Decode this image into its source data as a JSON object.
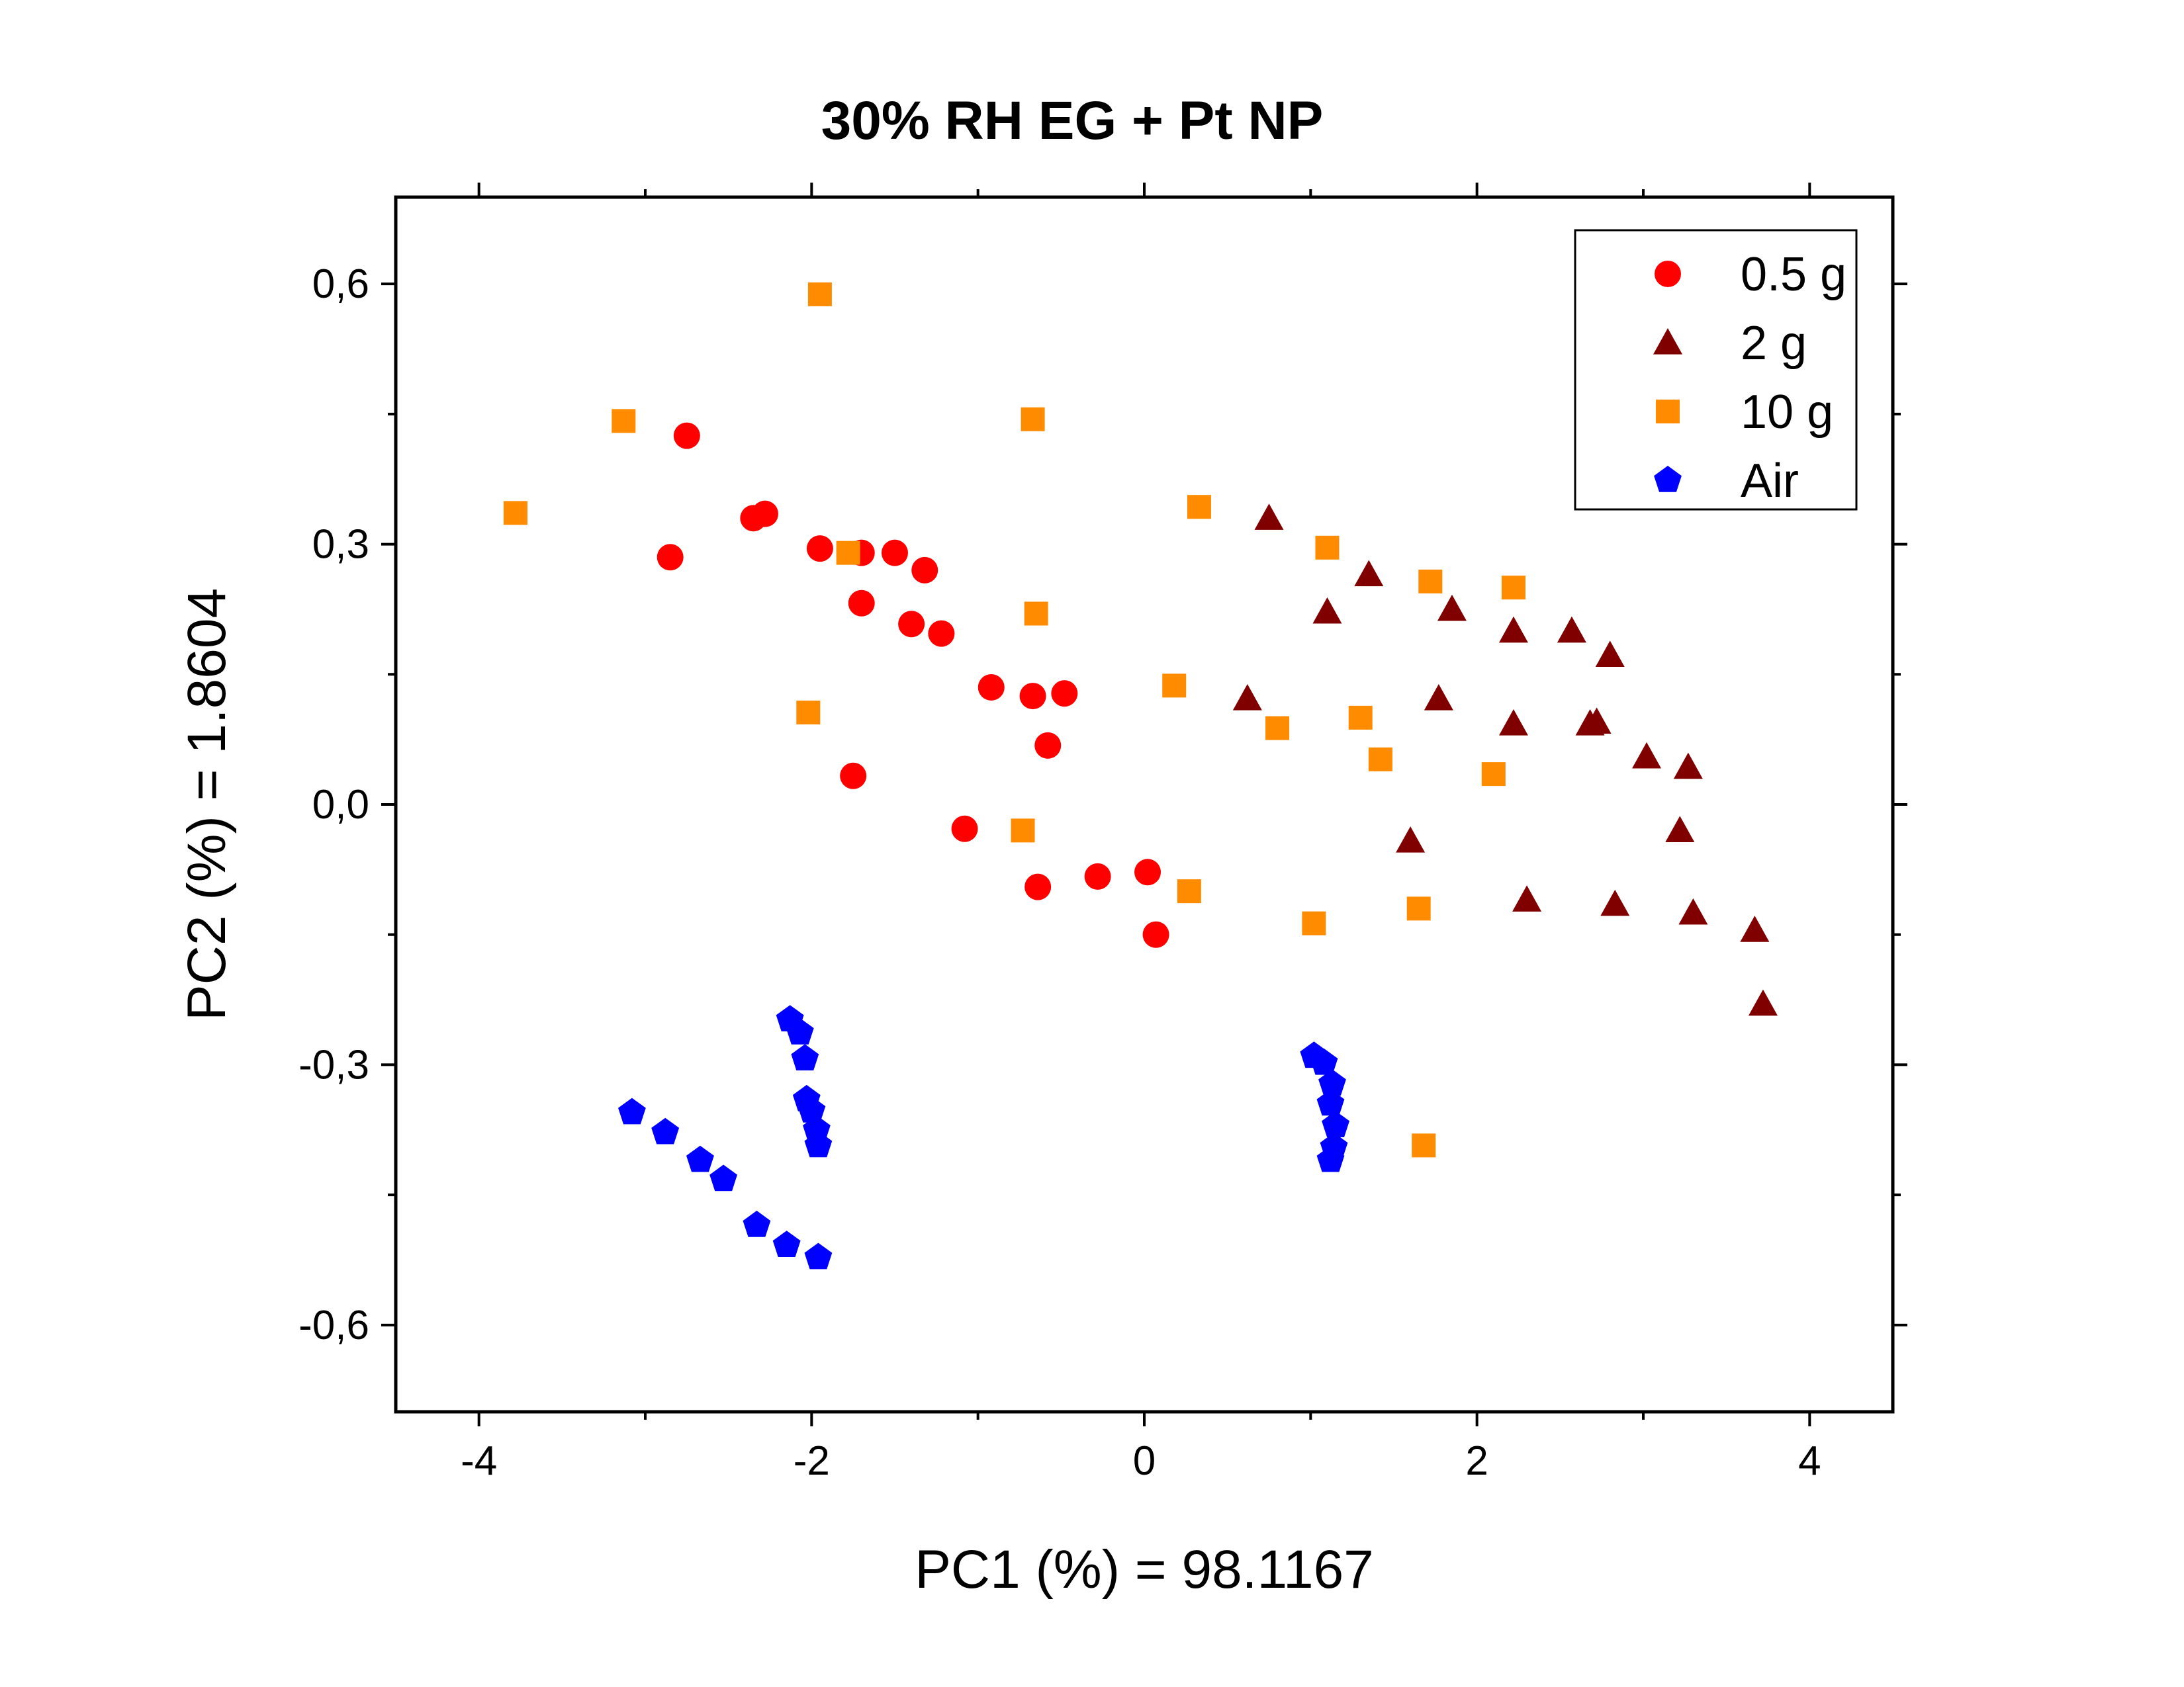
{
  "chart_data": {
    "type": "scatter",
    "title": "30% RH EG + Pt NP",
    "xlabel": "PC1 (%) = 98.1167",
    "ylabel": "PC2 (%) = 1.8604",
    "xlim": [
      -4.5,
      4.5
    ],
    "ylim": [
      -0.7,
      0.7
    ],
    "x_ticks": [
      -4,
      -2,
      0,
      2,
      4
    ],
    "x_tick_labels": [
      "-4",
      "-2",
      "0",
      "2",
      "4"
    ],
    "y_ticks": [
      -0.6,
      -0.3,
      0.0,
      0.3,
      0.6
    ],
    "y_tick_labels": [
      "-0,6",
      "-0,3",
      "0,0",
      "0,3",
      "0,6"
    ],
    "grid": false,
    "legend_position": "top-right",
    "series": [
      {
        "name": "0.5 g",
        "marker": "circle",
        "color": "#ff0000",
        "points": [
          [
            -2.75,
            0.425
          ],
          [
            -2.85,
            0.285
          ],
          [
            -2.35,
            0.33
          ],
          [
            -2.28,
            0.335
          ],
          [
            -1.95,
            0.295
          ],
          [
            -1.7,
            0.29
          ],
          [
            -1.5,
            0.29
          ],
          [
            -1.32,
            0.27
          ],
          [
            -1.7,
            0.232
          ],
          [
            -1.4,
            0.208
          ],
          [
            -1.22,
            0.197
          ],
          [
            -0.92,
            0.135
          ],
          [
            -0.67,
            0.125
          ],
          [
            -0.48,
            0.128
          ],
          [
            -0.58,
            0.068
          ],
          [
            -1.75,
            0.033
          ],
          [
            -1.08,
            -0.028
          ],
          [
            -0.64,
            -0.095
          ],
          [
            -0.28,
            -0.083
          ],
          [
            0.02,
            -0.078
          ],
          [
            0.07,
            -0.15
          ]
        ]
      },
      {
        "name": "2 g",
        "marker": "triangle",
        "color": "#800000",
        "points": [
          [
            0.75,
            0.33
          ],
          [
            1.35,
            0.265
          ],
          [
            1.1,
            0.222
          ],
          [
            1.85,
            0.225
          ],
          [
            2.22,
            0.2
          ],
          [
            2.57,
            0.2
          ],
          [
            2.8,
            0.172
          ],
          [
            0.62,
            0.122
          ],
          [
            1.77,
            0.122
          ],
          [
            2.22,
            0.093
          ],
          [
            2.68,
            0.093
          ],
          [
            2.72,
            0.095
          ],
          [
            3.02,
            0.055
          ],
          [
            3.27,
            0.043
          ],
          [
            1.6,
            -0.042
          ],
          [
            3.22,
            -0.03
          ],
          [
            2.3,
            -0.11
          ],
          [
            2.83,
            -0.115
          ],
          [
            3.3,
            -0.125
          ],
          [
            3.67,
            -0.145
          ],
          [
            3.72,
            -0.23
          ]
        ]
      },
      {
        "name": "10 g",
        "marker": "square",
        "color": "#ff8c00",
        "points": [
          [
            -1.95,
            0.588
          ],
          [
            -3.13,
            0.442
          ],
          [
            -0.67,
            0.444
          ],
          [
            -3.78,
            0.336
          ],
          [
            0.33,
            0.343
          ],
          [
            1.1,
            0.296
          ],
          [
            -1.78,
            0.29
          ],
          [
            1.72,
            0.257
          ],
          [
            2.22,
            0.25
          ],
          [
            -0.65,
            0.22
          ],
          [
            0.18,
            0.137
          ],
          [
            -2.02,
            0.106
          ],
          [
            0.8,
            0.088
          ],
          [
            1.3,
            0.1
          ],
          [
            1.42,
            0.052
          ],
          [
            2.1,
            0.035
          ],
          [
            -0.73,
            -0.03
          ],
          [
            0.27,
            -0.1
          ],
          [
            1.02,
            -0.137
          ],
          [
            1.65,
            -0.12
          ],
          [
            1.68,
            -0.393
          ]
        ]
      },
      {
        "name": "Air",
        "marker": "pentagon",
        "color": "#0000ff",
        "points": [
          [
            -2.13,
            -0.248
          ],
          [
            -2.07,
            -0.263
          ],
          [
            -2.04,
            -0.293
          ],
          [
            -2.03,
            -0.34
          ],
          [
            -2.0,
            -0.353
          ],
          [
            -1.97,
            -0.375
          ],
          [
            -1.96,
            -0.393
          ],
          [
            -3.08,
            -0.355
          ],
          [
            -2.88,
            -0.378
          ],
          [
            -2.67,
            -0.41
          ],
          [
            -2.53,
            -0.432
          ],
          [
            -2.33,
            -0.485
          ],
          [
            -2.15,
            -0.508
          ],
          [
            -1.96,
            -0.522
          ],
          [
            1.02,
            -0.29
          ],
          [
            1.08,
            -0.298
          ],
          [
            1.13,
            -0.322
          ],
          [
            1.12,
            -0.345
          ],
          [
            1.15,
            -0.37
          ],
          [
            1.14,
            -0.395
          ],
          [
            1.12,
            -0.41
          ]
        ]
      }
    ]
  }
}
